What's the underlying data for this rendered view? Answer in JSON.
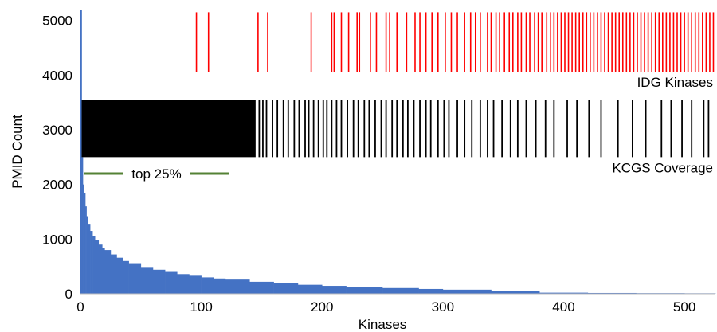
{
  "chart_data": {
    "type": "bar",
    "xlabel": "Kinases",
    "ylabel": "PMID Count",
    "xlim": [
      0,
      525
    ],
    "ylim": [
      0,
      5200
    ],
    "x_ticks": [
      0,
      100,
      200,
      300,
      400,
      500
    ],
    "y_ticks": [
      0,
      1000,
      2000,
      3000,
      4000,
      5000
    ],
    "grid": false,
    "colors": {
      "distribution": "#4472C4",
      "idg": "#FF0000",
      "kcgs": "#000000",
      "top25": "#548235"
    },
    "distribution": {
      "name": "PMID Count",
      "x": [
        0,
        1,
        2,
        3,
        4,
        5,
        6,
        8,
        10,
        12,
        15,
        18,
        20,
        25,
        30,
        35,
        40,
        50,
        60,
        70,
        80,
        90,
        100,
        110,
        120,
        140,
        160,
        180,
        200,
        220,
        250,
        280,
        300,
        340,
        380,
        420,
        460,
        500,
        525
      ],
      "values": [
        5200,
        2500,
        2000,
        1850,
        1600,
        1420,
        1280,
        1150,
        1060,
        980,
        900,
        840,
        800,
        720,
        660,
        600,
        560,
        490,
        440,
        400,
        360,
        330,
        300,
        280,
        260,
        220,
        190,
        165,
        145,
        128,
        105,
        88,
        75,
        50,
        20,
        15,
        12,
        10,
        8
      ]
    },
    "idg_kinases": {
      "label": "IDG Kinases",
      "band": [
        4050,
        5150
      ],
      "positions": [
        96,
        106,
        147,
        155,
        191,
        208,
        210,
        216,
        222,
        229,
        231,
        240,
        245,
        253,
        256,
        262,
        270,
        277,
        281,
        286,
        291,
        296,
        302,
        307,
        312,
        318,
        323,
        327,
        331,
        337,
        340,
        344,
        347,
        351,
        355,
        358,
        362,
        365,
        369,
        372,
        376,
        379,
        382,
        386,
        389,
        392,
        395,
        398,
        401,
        404,
        407,
        410,
        413,
        416,
        419,
        422,
        425,
        428,
        431,
        434,
        437,
        440,
        443,
        446,
        449,
        452,
        455,
        458,
        461,
        464,
        467,
        470,
        473,
        476,
        479,
        482,
        485,
        488,
        491,
        494,
        497,
        500,
        503,
        506,
        509,
        512,
        515,
        518,
        521,
        524
      ]
    },
    "kcgs_coverage": {
      "label": "KCGS Coverage",
      "band": [
        2500,
        3550
      ],
      "dense_ranges": [
        [
          1,
          145
        ]
      ],
      "positions": [
        148,
        151,
        154,
        159,
        163,
        168,
        172,
        177,
        181,
        186,
        189,
        193,
        197,
        201,
        204,
        208,
        212,
        216,
        221,
        226,
        230,
        235,
        239,
        244,
        249,
        253,
        258,
        262,
        267,
        271,
        276,
        281,
        286,
        290,
        296,
        301,
        305,
        312,
        318,
        324,
        331,
        337,
        342,
        349,
        356,
        362,
        369,
        377,
        385,
        392,
        403,
        411,
        421,
        431,
        445,
        457,
        468,
        481,
        489,
        498,
        506,
        516,
        520
      ]
    },
    "top25": {
      "label": "top 25%",
      "x_range": [
        3,
        123
      ],
      "y": 2200
    }
  }
}
